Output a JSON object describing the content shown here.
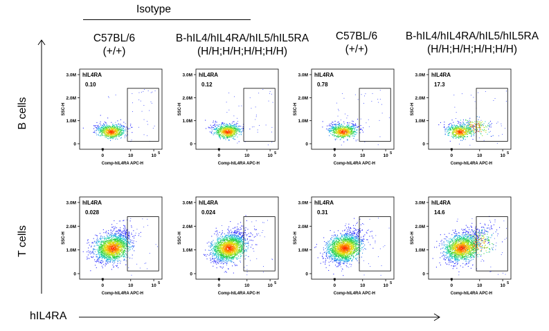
{
  "header": {
    "isotype_label": "Isotype",
    "columns": [
      {
        "line1": "C57BL/6",
        "line2": "(+/+)"
      },
      {
        "line1": "B-hIL4/hIL4RA/hIL5/hIL5RA",
        "line2": "(H/H;H/H;H/H;H/H)"
      },
      {
        "line1": "C57BL/6",
        "line2": "(+/+)"
      },
      {
        "line1": "B-hIL4/hIL4RA/hIL5/hIL5RA",
        "line2": "(H/H;H/H;H/H;H/H)"
      }
    ]
  },
  "rows": [
    {
      "label": "B cells"
    },
    {
      "label": "T cells"
    }
  ],
  "x_arrow_label": "hIL4RA",
  "chart_data": {
    "type": "scatter",
    "plot_style": "density flow cytometry dot plot with rectangular gate",
    "xlabel": "Comp-hIL4RA APC-H",
    "ylabel": "SSC-H",
    "gate_name": "hIL4RA",
    "y_ticks": [
      "0",
      "1.0M",
      "2.0M",
      "3.0M"
    ],
    "x_ticks": [
      "0",
      "10",
      "10",
      "10"
    ],
    "x_tick_exponents": [
      "",
      "4",
      "",
      "5"
    ],
    "colors": {
      "low": "#1f2fff",
      "mid": "#20d0d0",
      "high": "#ff2000"
    },
    "panels": [
      {
        "row": 0,
        "col": 0,
        "gate_percent": "0.10"
      },
      {
        "row": 0,
        "col": 1,
        "gate_percent": "0.12"
      },
      {
        "row": 0,
        "col": 2,
        "gate_percent": "0.78"
      },
      {
        "row": 0,
        "col": 3,
        "gate_percent": "17.3"
      },
      {
        "row": 1,
        "col": 0,
        "gate_percent": "0.028"
      },
      {
        "row": 1,
        "col": 1,
        "gate_percent": "0.024"
      },
      {
        "row": 1,
        "col": 2,
        "gate_percent": "0.31"
      },
      {
        "row": 1,
        "col": 3,
        "gate_percent": "14.6"
      }
    ]
  }
}
